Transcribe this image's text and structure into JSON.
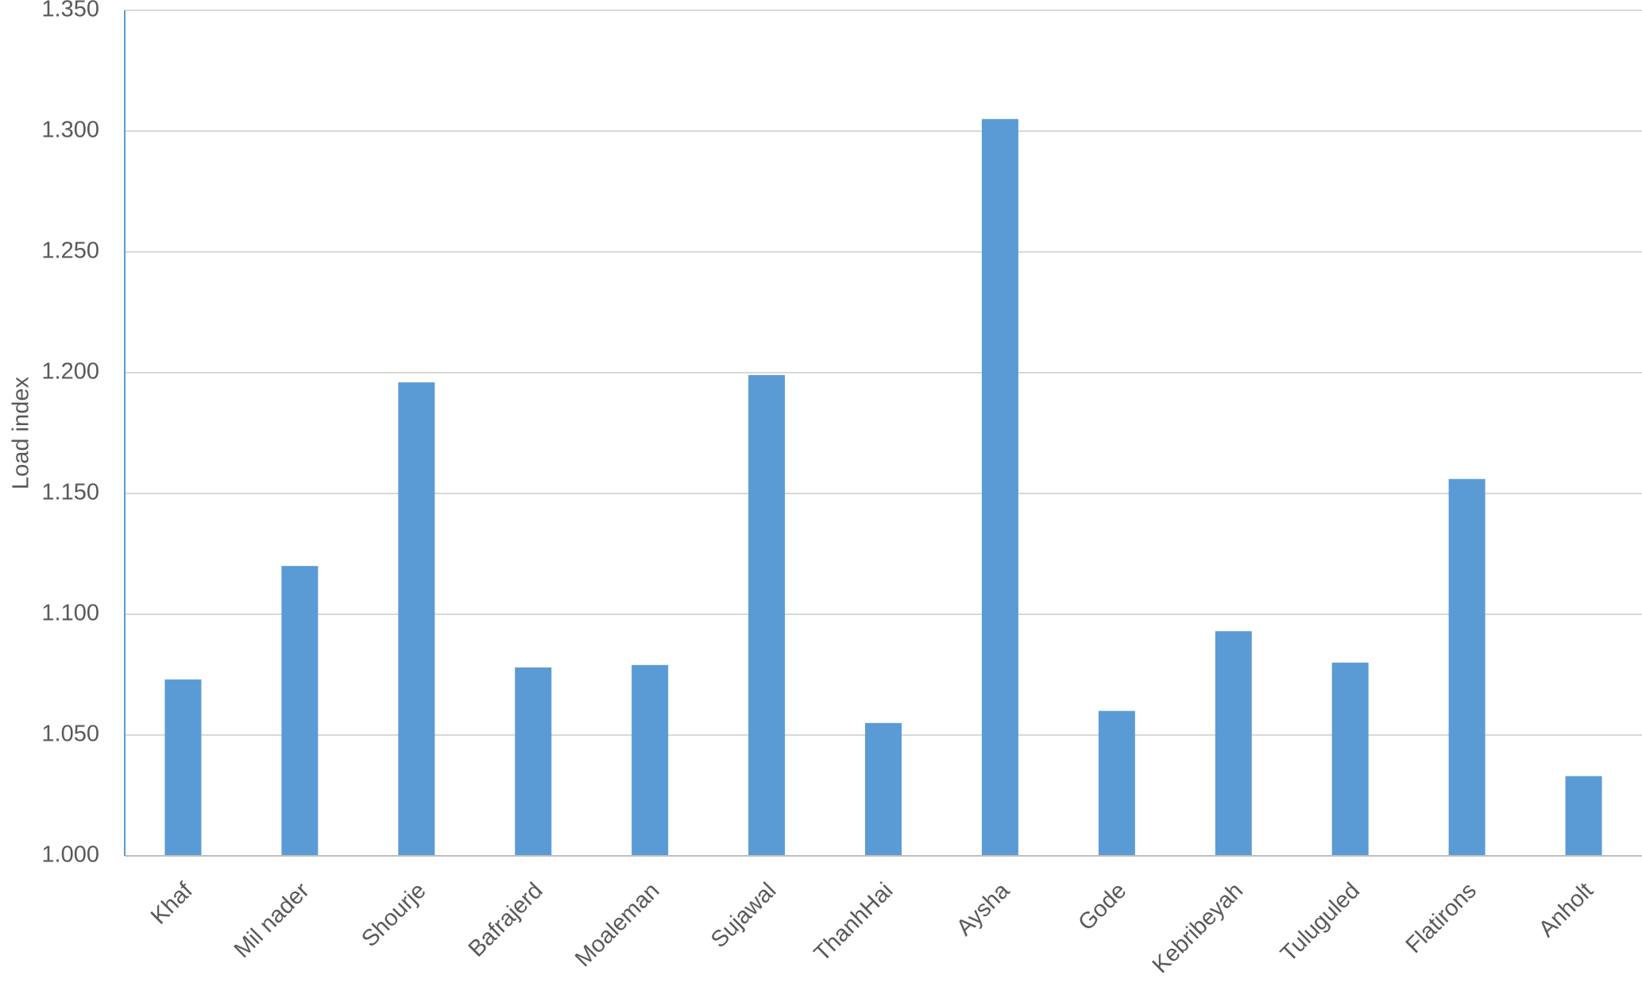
{
  "chart_data": {
    "type": "bar",
    "y_label": "Load index",
    "categories": [
      "Khaf",
      "Mil nader",
      "Shourje",
      "Bafrajerd",
      "Moaleman",
      "Sujawal",
      "ThanhHai",
      "Aysha",
      "Gode",
      "Kebribeyah",
      "Tuluguled",
      "Flatirons",
      "Anholt"
    ],
    "values": [
      1.073,
      1.12,
      1.196,
      1.078,
      1.079,
      1.199,
      1.055,
      1.305,
      1.06,
      1.093,
      1.08,
      1.156,
      1.033
    ],
    "color": "#5b9bd5",
    "ylim": [
      1.0,
      1.35
    ],
    "yticks": [
      {
        "value": 1.0,
        "label": "1.000"
      },
      {
        "value": 1.05,
        "label": "1.050"
      },
      {
        "value": 1.1,
        "label": "1.100"
      },
      {
        "value": 1.15,
        "label": "1.150"
      },
      {
        "value": 1.2,
        "label": "1.200"
      },
      {
        "value": 1.25,
        "label": "1.250"
      },
      {
        "value": 1.3,
        "label": "1.300"
      },
      {
        "value": 1.35,
        "label": "1.350"
      }
    ],
    "grid": true
  }
}
